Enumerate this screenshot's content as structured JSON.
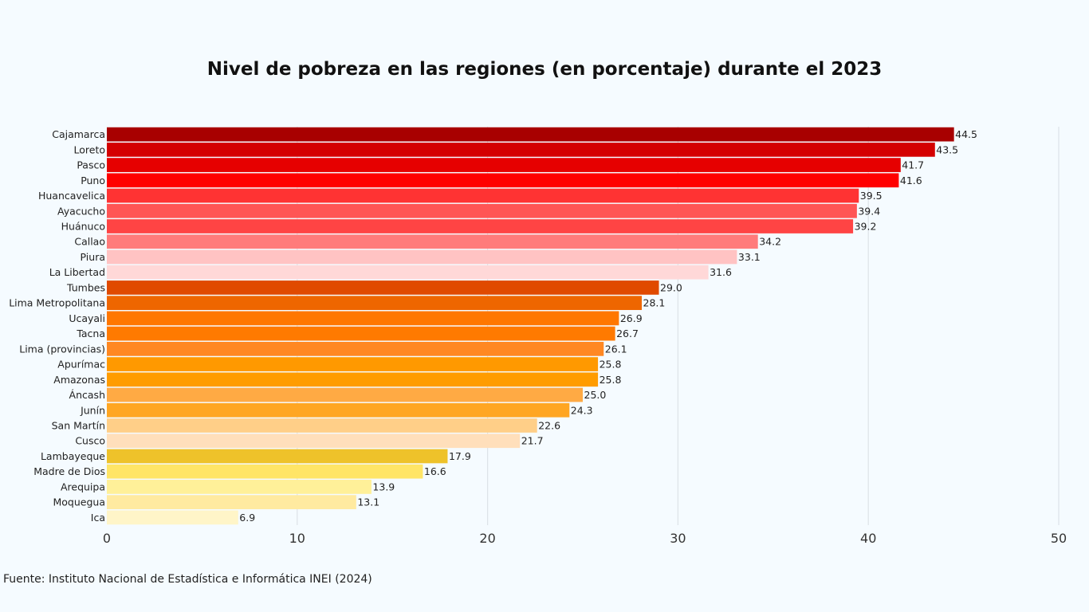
{
  "chart_data": {
    "type": "bar",
    "orientation": "horizontal",
    "title": "Nivel de pobreza en las regiones (en porcentaje) durante el 2023",
    "source": "Fuente: Instituto Nacional de Estadística e Informática INEI (2024)",
    "xlabel": "",
    "ylabel": "",
    "xlim": [
      0,
      50
    ],
    "xticks": [
      0,
      10,
      20,
      30,
      40,
      50
    ],
    "grid": true,
    "categories": [
      "Cajamarca",
      "Loreto",
      "Pasco",
      "Puno",
      "Huancavelica",
      "Ayacucho",
      "Huánuco",
      "Callao",
      "Piura",
      "La Libertad",
      "Tumbes",
      "Lima Metropolitana",
      "Ucayali",
      "Tacna",
      "Lima (provincias)",
      "Apurímac",
      "Amazonas",
      "Áncash",
      "Junín",
      "San Martín",
      "Cusco",
      "Lambayeque",
      "Madre de Dios",
      "Arequipa",
      "Moquegua",
      "Ica"
    ],
    "values": [
      44.5,
      43.5,
      41.7,
      41.6,
      39.5,
      39.4,
      39.2,
      34.2,
      33.1,
      31.6,
      29.0,
      28.1,
      26.9,
      26.7,
      26.1,
      25.8,
      25.8,
      25.0,
      24.3,
      22.6,
      21.7,
      17.9,
      16.6,
      13.9,
      13.1,
      6.9
    ],
    "colors": [
      "#a80000",
      "#d40000",
      "#e60000",
      "#ff0000",
      "#ff3333",
      "#ff5555",
      "#ff4444",
      "#ff7b7b",
      "#ffc3c3",
      "#ffd8d8",
      "#e04a00",
      "#ee6600",
      "#ff7700",
      "#ff7a00",
      "#ff8822",
      "#ff9900",
      "#ff9c00",
      "#ffaa44",
      "#ffa622",
      "#ffcf88",
      "#ffdfbb",
      "#eec22a",
      "#ffe566",
      "#fff099",
      "#ffeaa0",
      "#fff5c8"
    ]
  }
}
